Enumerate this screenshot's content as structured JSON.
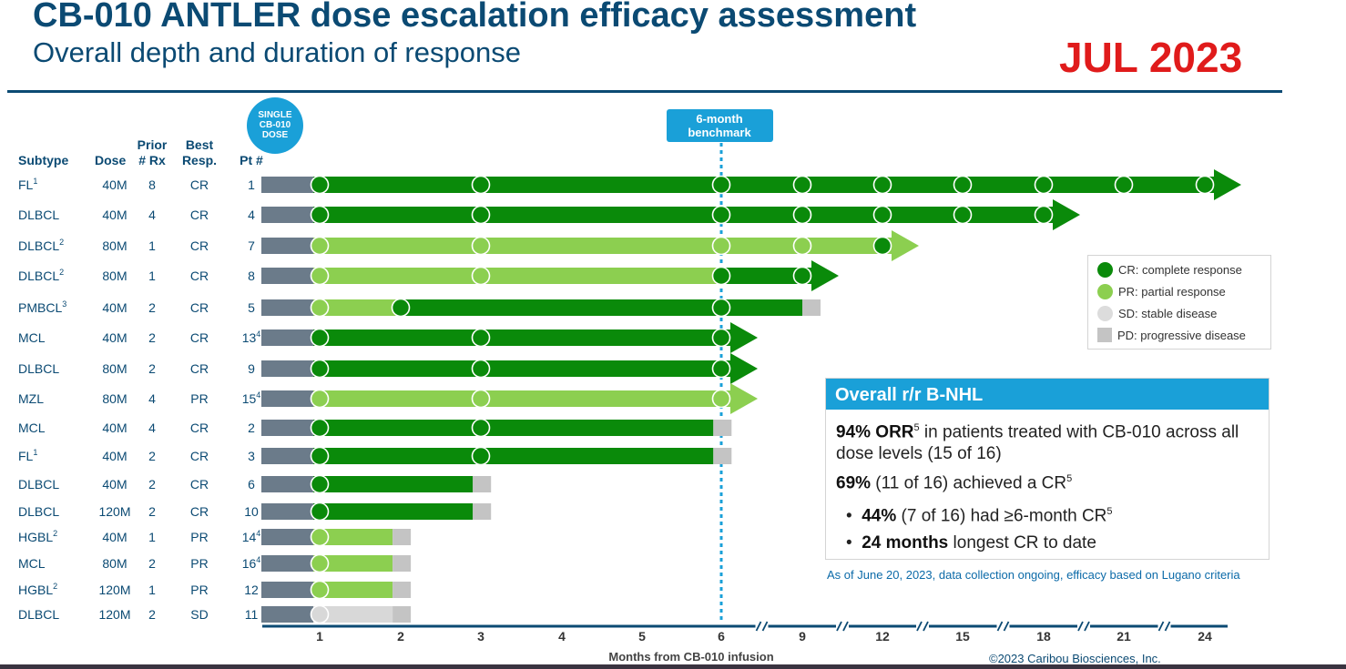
{
  "header": {
    "title": "CB-010 ANTLER dose escalation efficacy assessment",
    "subtitle": "Overall depth and duration of response",
    "date_stamp": "JUL 2023"
  },
  "colors": {
    "cr": "#0a8a0a",
    "pr": "#8ccf50",
    "sd": "#d8d8d8",
    "pd": "#c4c4c4",
    "pretreat": "#6b7b8a",
    "accent": "#1aa0d8",
    "navy": "#0b4a73"
  },
  "chart_data": {
    "type": "swimmer",
    "xlabel": "Months from CB-010 infusion",
    "x_ticks": [
      "1",
      "2",
      "3",
      "4",
      "5",
      "6",
      "9",
      "12",
      "15",
      "18",
      "21",
      "24"
    ],
    "axis_breaks_after": [
      "6",
      "9",
      "12",
      "15",
      "18",
      "21"
    ],
    "dose_badge": [
      "SINGLE",
      "CB-010",
      "DOSE"
    ],
    "benchmark_label": [
      "6-month",
      "benchmark"
    ],
    "benchmark_at_month": 6,
    "columns": [
      {
        "key": "subtype",
        "label": [
          "",
          "Subtype"
        ]
      },
      {
        "key": "dose",
        "label": [
          "",
          "Dose"
        ]
      },
      {
        "key": "prior_rx",
        "label": [
          "Prior",
          "# Rx"
        ]
      },
      {
        "key": "best_resp",
        "label": [
          "Best",
          "Resp."
        ]
      },
      {
        "key": "pt",
        "label": [
          "",
          "Pt #"
        ]
      }
    ],
    "patients": [
      {
        "subtype": "FL",
        "sup": "1",
        "dose": "40M",
        "prior_rx": "8",
        "best_resp": "CR",
        "pt": "1",
        "pt_sup": "",
        "segments": [
          {
            "from": 1,
            "to": 24,
            "status": "CR"
          }
        ],
        "ongoing": true,
        "pd_at": null,
        "assessments": [
          {
            "m": 1,
            "s": "CR"
          },
          {
            "m": 3,
            "s": "CR"
          },
          {
            "m": 6,
            "s": "CR"
          },
          {
            "m": 9,
            "s": "CR"
          },
          {
            "m": 12,
            "s": "CR"
          },
          {
            "m": 15,
            "s": "CR"
          },
          {
            "m": 18,
            "s": "CR"
          },
          {
            "m": 21,
            "s": "CR"
          },
          {
            "m": 24,
            "s": "CR"
          }
        ]
      },
      {
        "subtype": "DLBCL",
        "sup": "",
        "dose": "40M",
        "prior_rx": "4",
        "best_resp": "CR",
        "pt": "4",
        "pt_sup": "",
        "segments": [
          {
            "from": 1,
            "to": 18,
            "status": "CR"
          }
        ],
        "ongoing": true,
        "pd_at": null,
        "assessments": [
          {
            "m": 1,
            "s": "CR"
          },
          {
            "m": 3,
            "s": "CR"
          },
          {
            "m": 6,
            "s": "CR"
          },
          {
            "m": 9,
            "s": "CR"
          },
          {
            "m": 12,
            "s": "CR"
          },
          {
            "m": 15,
            "s": "CR"
          },
          {
            "m": 18,
            "s": "CR"
          }
        ]
      },
      {
        "subtype": "DLBCL",
        "sup": "2",
        "dose": "80M",
        "prior_rx": "1",
        "best_resp": "CR",
        "pt": "7",
        "pt_sup": "",
        "segments": [
          {
            "from": 1,
            "to": 12,
            "status": "PR"
          }
        ],
        "ongoing": true,
        "pd_at": null,
        "assessments": [
          {
            "m": 1,
            "s": "PR"
          },
          {
            "m": 3,
            "s": "PR"
          },
          {
            "m": 6,
            "s": "PR"
          },
          {
            "m": 9,
            "s": "PR"
          },
          {
            "m": 12,
            "s": "CR"
          }
        ]
      },
      {
        "subtype": "DLBCL",
        "sup": "2",
        "dose": "80M",
        "prior_rx": "1",
        "best_resp": "CR",
        "pt": "8",
        "pt_sup": "",
        "segments": [
          {
            "from": 1,
            "to": 6,
            "status": "PR"
          },
          {
            "from": 6,
            "to": 9,
            "status": "CR"
          }
        ],
        "ongoing": true,
        "pd_at": null,
        "assessments": [
          {
            "m": 1,
            "s": "PR"
          },
          {
            "m": 3,
            "s": "PR"
          },
          {
            "m": 6,
            "s": "CR"
          },
          {
            "m": 9,
            "s": "CR"
          }
        ]
      },
      {
        "subtype": "PMBCL",
        "sup": "3",
        "dose": "40M",
        "prior_rx": "2",
        "best_resp": "CR",
        "pt": "5",
        "pt_sup": "",
        "segments": [
          {
            "from": 1,
            "to": 2,
            "status": "PR"
          },
          {
            "from": 2,
            "to": 9,
            "status": "CR"
          }
        ],
        "ongoing": false,
        "pd_at": 9,
        "assessments": [
          {
            "m": 1,
            "s": "PR"
          },
          {
            "m": 2,
            "s": "CR"
          },
          {
            "m": 6,
            "s": "CR"
          }
        ]
      },
      {
        "subtype": "MCL",
        "sup": "",
        "dose": "40M",
        "prior_rx": "2",
        "best_resp": "CR",
        "pt": "13",
        "pt_sup": "4",
        "segments": [
          {
            "from": 1,
            "to": 6,
            "status": "CR"
          }
        ],
        "ongoing": true,
        "pd_at": null,
        "assessments": [
          {
            "m": 1,
            "s": "CR"
          },
          {
            "m": 3,
            "s": "CR"
          },
          {
            "m": 6,
            "s": "CR"
          }
        ]
      },
      {
        "subtype": "DLBCL",
        "sup": "",
        "dose": "80M",
        "prior_rx": "2",
        "best_resp": "CR",
        "pt": "9",
        "pt_sup": "",
        "segments": [
          {
            "from": 1,
            "to": 6,
            "status": "CR"
          }
        ],
        "ongoing": true,
        "pd_at": null,
        "assessments": [
          {
            "m": 1,
            "s": "CR"
          },
          {
            "m": 3,
            "s": "CR"
          },
          {
            "m": 6,
            "s": "CR"
          }
        ]
      },
      {
        "subtype": "MZL",
        "sup": "",
        "dose": "80M",
        "prior_rx": "4",
        "best_resp": "PR",
        "pt": "15",
        "pt_sup": "4",
        "segments": [
          {
            "from": 1,
            "to": 6,
            "status": "PR"
          }
        ],
        "ongoing": true,
        "pd_at": null,
        "assessments": [
          {
            "m": 1,
            "s": "PR"
          },
          {
            "m": 3,
            "s": "PR"
          },
          {
            "m": 6,
            "s": "PR"
          }
        ]
      },
      {
        "subtype": "MCL",
        "sup": "",
        "dose": "40M",
        "prior_rx": "4",
        "best_resp": "CR",
        "pt": "2",
        "pt_sup": "",
        "segments": [
          {
            "from": 1,
            "to": 5.9,
            "status": "CR"
          }
        ],
        "ongoing": false,
        "pd_at": 5.9,
        "assessments": [
          {
            "m": 1,
            "s": "CR"
          },
          {
            "m": 3,
            "s": "CR"
          }
        ]
      },
      {
        "subtype": "FL",
        "sup": "1",
        "dose": "40M",
        "prior_rx": "2",
        "best_resp": "CR",
        "pt": "3",
        "pt_sup": "",
        "segments": [
          {
            "from": 1,
            "to": 5.9,
            "status": "CR"
          }
        ],
        "ongoing": false,
        "pd_at": 5.9,
        "assessments": [
          {
            "m": 1,
            "s": "CR"
          },
          {
            "m": 3,
            "s": "CR"
          }
        ]
      },
      {
        "subtype": "DLBCL",
        "sup": "",
        "dose": "40M",
        "prior_rx": "2",
        "best_resp": "CR",
        "pt": "6",
        "pt_sup": "",
        "segments": [
          {
            "from": 1,
            "to": 2.9,
            "status": "CR"
          }
        ],
        "ongoing": false,
        "pd_at": 2.9,
        "assessments": [
          {
            "m": 1,
            "s": "CR"
          }
        ]
      },
      {
        "subtype": "DLBCL",
        "sup": "",
        "dose": "120M",
        "prior_rx": "2",
        "best_resp": "CR",
        "pt": "10",
        "pt_sup": "",
        "segments": [
          {
            "from": 1,
            "to": 2.9,
            "status": "CR"
          }
        ],
        "ongoing": false,
        "pd_at": 2.9,
        "assessments": [
          {
            "m": 1,
            "s": "CR"
          }
        ]
      },
      {
        "subtype": "HGBL",
        "sup": "2",
        "dose": "40M",
        "prior_rx": "1",
        "best_resp": "PR",
        "pt": "14",
        "pt_sup": "4",
        "segments": [
          {
            "from": 1,
            "to": 1.9,
            "status": "PR"
          }
        ],
        "ongoing": false,
        "pd_at": 1.9,
        "assessments": [
          {
            "m": 1,
            "s": "PR"
          }
        ]
      },
      {
        "subtype": "MCL",
        "sup": "",
        "dose": "80M",
        "prior_rx": "2",
        "best_resp": "PR",
        "pt": "16",
        "pt_sup": "4",
        "segments": [
          {
            "from": 1,
            "to": 1.9,
            "status": "PR"
          }
        ],
        "ongoing": false,
        "pd_at": 1.9,
        "assessments": [
          {
            "m": 1,
            "s": "PR"
          }
        ]
      },
      {
        "subtype": "HGBL",
        "sup": "2",
        "dose": "120M",
        "prior_rx": "1",
        "best_resp": "PR",
        "pt": "12",
        "pt_sup": "",
        "segments": [
          {
            "from": 1,
            "to": 1.9,
            "status": "PR"
          }
        ],
        "ongoing": false,
        "pd_at": 1.9,
        "assessments": [
          {
            "m": 1,
            "s": "PR"
          }
        ]
      },
      {
        "subtype": "DLBCL",
        "sup": "",
        "dose": "120M",
        "prior_rx": "2",
        "best_resp": "SD",
        "pt": "11",
        "pt_sup": "",
        "segments": [
          {
            "from": 1,
            "to": 1.9,
            "status": "SD"
          }
        ],
        "ongoing": false,
        "pd_at": 1.9,
        "assessments": [
          {
            "m": 1,
            "s": "SD"
          }
        ]
      }
    ]
  },
  "legend": {
    "items": [
      {
        "key": "CR",
        "label": "CR: complete response",
        "shape": "round"
      },
      {
        "key": "PR",
        "label": "PR: partial response",
        "shape": "round"
      },
      {
        "key": "SD",
        "label": "SD: stable disease",
        "shape": "round"
      },
      {
        "key": "PD",
        "label": "PD: progressive disease",
        "shape": "square"
      }
    ]
  },
  "summary": {
    "heading": "Overall r/r B-NHL",
    "line1_bold": "94% ORR",
    "line1_sup": "5",
    "line1_rest": " in patients treated with CB-010 across all dose levels (15 of 16)",
    "line2_bold": "69%",
    "line2_rest": " (11 of 16) achieved a CR",
    "line2_sup": "5",
    "bullet1_bold": "44%",
    "bullet1_rest": " (7 of 16) had ≥6-month CR",
    "bullet1_sup": "5",
    "bullet2_bold": "24 months",
    "bullet2_rest": " longest CR to date"
  },
  "footnote": "As of June 20, 2023, data collection ongoing, efficacy based on Lugano criteria",
  "copyright": "©2023 Caribou Biosciences, Inc."
}
